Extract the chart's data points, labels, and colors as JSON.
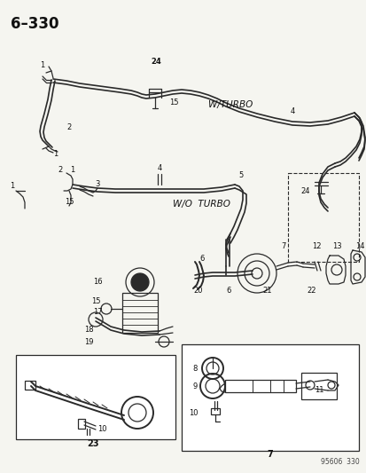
{
  "title": "6–330",
  "background_color": "#f5f5f0",
  "diagram_color": "#2a2a2a",
  "fig_width": 4.14,
  "fig_height": 5.33,
  "dpi": 100,
  "watermark": "95606  330",
  "wturbo": "W/TURBO",
  "woturbo": "W/O  TURBO",
  "box1_label": "23",
  "box2_label": "7",
  "lw_tube": 1.2,
  "lw_part": 0.9
}
